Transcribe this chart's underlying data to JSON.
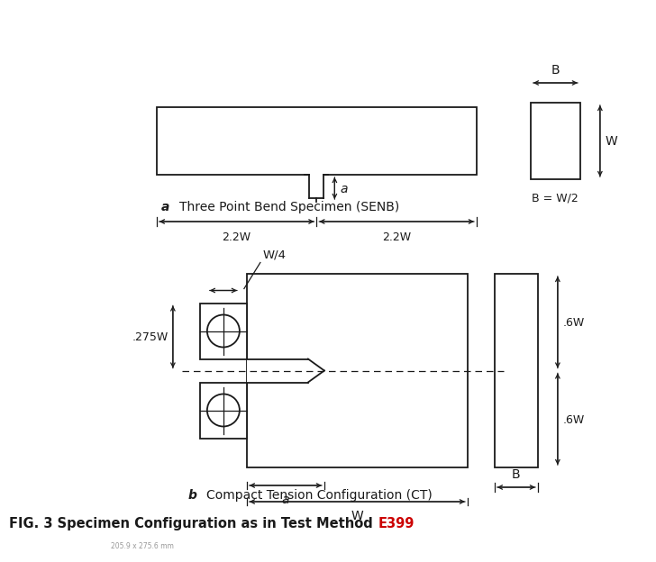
{
  "bg_color": "#ffffff",
  "line_color": "#1a1a1a",
  "red_color": "#cc0000",
  "gray_color": "#999999",
  "title_prefix": "FIG. 3 Specimen Configuration as in Test Method ",
  "title_highlight": "E399",
  "subtitle_a": "Three Point Bend Specimen (SENB)",
  "subtitle_b": "Compact Tension Configuration (CT)",
  "label_a": "a",
  "label_b": "b",
  "footnote": "205.9 x 275.6 mm"
}
